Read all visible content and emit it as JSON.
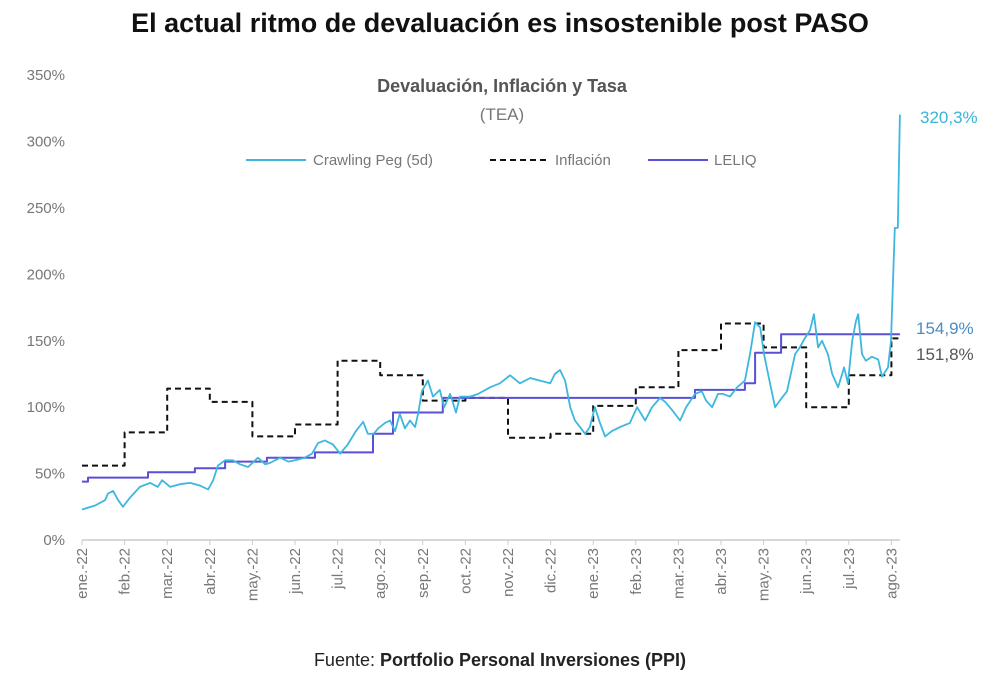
{
  "title": "El actual ritmo de devaluación es insostenible post PASO",
  "footer": {
    "prefix": "Fuente: ",
    "source": "Portfolio Personal Inversiones (PPI)"
  },
  "chart_data": {
    "type": "line",
    "title": "Devaluación, Inflación y Tasa",
    "subtitle": "(TEA)",
    "xlabel": "",
    "ylabel": "",
    "ylim": [
      0,
      350
    ],
    "y_ticks": [
      "0%",
      "50%",
      "100%",
      "150%",
      "200%",
      "250%",
      "300%",
      "350%"
    ],
    "y_tick_values": [
      0,
      50,
      100,
      150,
      200,
      250,
      300,
      350
    ],
    "x_unit": "months since ene.-22",
    "xlim": [
      0,
      19.2
    ],
    "x_ticks": [
      "ene.-22",
      "feb.-22",
      "mar.-22",
      "abr.-22",
      "may.-22",
      "jun.-22",
      "jul.-22",
      "ago.-22",
      "sep.-22",
      "oct.-22",
      "nov.-22",
      "dic.-22",
      "ene.-23",
      "feb.-23",
      "mar.-23",
      "abr.-23",
      "may.-23",
      "jun.-23",
      "jul.-23",
      "ago.-23"
    ],
    "legend_position": "top-center",
    "colors": {
      "crawling": "#3db7de",
      "inflacion": "#111111",
      "leliq": "#5a4fd6",
      "label_crawling": "#3ab4d8",
      "label_leliq": "#4a8cc6",
      "label_inflacion": "#555555"
    },
    "series": [
      {
        "name": "Crawling Peg (5d)",
        "style": "solid",
        "points": [
          [
            0,
            23
          ],
          [
            0.31,
            26
          ],
          [
            0.54,
            30
          ],
          [
            0.61,
            35
          ],
          [
            0.73,
            37
          ],
          [
            0.85,
            30
          ],
          [
            0.96,
            25
          ],
          [
            1.13,
            32
          ],
          [
            1.36,
            40
          ],
          [
            1.6,
            43
          ],
          [
            1.78,
            40
          ],
          [
            1.88,
            45
          ],
          [
            2.07,
            40
          ],
          [
            2.3,
            42
          ],
          [
            2.54,
            43
          ],
          [
            2.77,
            41
          ],
          [
            2.96,
            38
          ],
          [
            3.08,
            45
          ],
          [
            3.19,
            56
          ],
          [
            3.36,
            60
          ],
          [
            3.54,
            60
          ],
          [
            3.71,
            57
          ],
          [
            3.9,
            55
          ],
          [
            4.13,
            62
          ],
          [
            4.3,
            57
          ],
          [
            4.41,
            58
          ],
          [
            4.65,
            62
          ],
          [
            4.84,
            59
          ],
          [
            5.0,
            60
          ],
          [
            5.23,
            62
          ],
          [
            5.4,
            65
          ],
          [
            5.54,
            73
          ],
          [
            5.7,
            75
          ],
          [
            5.89,
            72
          ],
          [
            6.06,
            65
          ],
          [
            6.24,
            72
          ],
          [
            6.43,
            82
          ],
          [
            6.6,
            89
          ],
          [
            6.71,
            80
          ],
          [
            6.85,
            80
          ],
          [
            6.95,
            84
          ],
          [
            7.11,
            88
          ],
          [
            7.23,
            90
          ],
          [
            7.35,
            82
          ],
          [
            7.46,
            95
          ],
          [
            7.58,
            84
          ],
          [
            7.7,
            90
          ],
          [
            7.82,
            85
          ],
          [
            7.89,
            95
          ],
          [
            7.98,
            112
          ],
          [
            8.12,
            120
          ],
          [
            8.24,
            108
          ],
          [
            8.4,
            113
          ],
          [
            8.5,
            100
          ],
          [
            8.64,
            110
          ],
          [
            8.78,
            96
          ],
          [
            8.87,
            108
          ],
          [
            9.11,
            108
          ],
          [
            9.3,
            110
          ],
          [
            9.58,
            115
          ],
          [
            9.81,
            118
          ],
          [
            10.05,
            124
          ],
          [
            10.28,
            118
          ],
          [
            10.52,
            122
          ],
          [
            10.75,
            120
          ],
          [
            10.99,
            118
          ],
          [
            11.1,
            125
          ],
          [
            11.22,
            128
          ],
          [
            11.34,
            120
          ],
          [
            11.46,
            100
          ],
          [
            11.57,
            90
          ],
          [
            11.69,
            85
          ],
          [
            11.81,
            80
          ],
          [
            11.92,
            85
          ],
          [
            12.04,
            100
          ],
          [
            12.16,
            88
          ],
          [
            12.28,
            78
          ],
          [
            12.44,
            82
          ],
          [
            12.63,
            85
          ],
          [
            12.86,
            88
          ],
          [
            13.03,
            100
          ],
          [
            13.22,
            90
          ],
          [
            13.38,
            100
          ],
          [
            13.57,
            107
          ],
          [
            13.69,
            104
          ],
          [
            13.85,
            98
          ],
          [
            14.04,
            90
          ],
          [
            14.18,
            100
          ],
          [
            14.39,
            110
          ],
          [
            14.55,
            112
          ],
          [
            14.65,
            105
          ],
          [
            14.79,
            100
          ],
          [
            14.93,
            110
          ],
          [
            15.05,
            110
          ],
          [
            15.21,
            108
          ],
          [
            15.38,
            115
          ],
          [
            15.56,
            120
          ],
          [
            15.68,
            140
          ],
          [
            15.8,
            164
          ],
          [
            15.92,
            160
          ],
          [
            16.01,
            140
          ],
          [
            16.15,
            118
          ],
          [
            16.27,
            100
          ],
          [
            16.38,
            105
          ],
          [
            16.55,
            112
          ],
          [
            16.74,
            140
          ],
          [
            16.85,
            145
          ],
          [
            16.97,
            152
          ],
          [
            17.09,
            158
          ],
          [
            17.18,
            170
          ],
          [
            17.28,
            145
          ],
          [
            17.37,
            150
          ],
          [
            17.51,
            140
          ],
          [
            17.61,
            125
          ],
          [
            17.75,
            115
          ],
          [
            17.89,
            130
          ],
          [
            17.98,
            118
          ],
          [
            18.08,
            150
          ],
          [
            18.17,
            165
          ],
          [
            18.22,
            170
          ],
          [
            18.31,
            140
          ],
          [
            18.4,
            135
          ],
          [
            18.54,
            138
          ],
          [
            18.69,
            136
          ],
          [
            18.78,
            123
          ],
          [
            18.92,
            130
          ],
          [
            18.99,
            150
          ],
          [
            19.08,
            235
          ],
          [
            19.15,
            235
          ],
          [
            19.2,
            320.3
          ]
        ]
      },
      {
        "name": "Inflación",
        "style": "dashed-step",
        "points": [
          [
            0,
            56
          ],
          [
            1,
            81
          ],
          [
            2,
            114
          ],
          [
            3,
            104
          ],
          [
            4,
            78
          ],
          [
            5,
            87
          ],
          [
            6,
            135
          ],
          [
            7,
            124
          ],
          [
            8,
            105
          ],
          [
            9,
            107
          ],
          [
            10,
            77
          ],
          [
            11,
            80
          ],
          [
            12,
            101
          ],
          [
            13,
            115
          ],
          [
            14,
            143
          ],
          [
            15,
            163
          ],
          [
            16,
            145
          ],
          [
            17,
            100
          ],
          [
            18,
            124
          ],
          [
            19,
            151.8
          ],
          [
            19.2,
            151.8
          ]
        ]
      },
      {
        "name": "LELIQ",
        "style": "step",
        "points": [
          [
            0,
            44
          ],
          [
            0.14,
            47
          ],
          [
            1.55,
            51
          ],
          [
            2.65,
            54
          ],
          [
            3.36,
            59
          ],
          [
            4.34,
            62
          ],
          [
            5.47,
            66
          ],
          [
            6.83,
            80
          ],
          [
            7.3,
            96
          ],
          [
            8.47,
            107
          ],
          [
            14.39,
            113
          ],
          [
            15.56,
            118
          ],
          [
            15.8,
            141
          ],
          [
            16.41,
            154.9
          ],
          [
            19.2,
            154.9
          ]
        ]
      }
    ],
    "end_labels": {
      "crawling": "320,3%",
      "leliq": "154,9%",
      "inflacion": "151,8%"
    }
  }
}
